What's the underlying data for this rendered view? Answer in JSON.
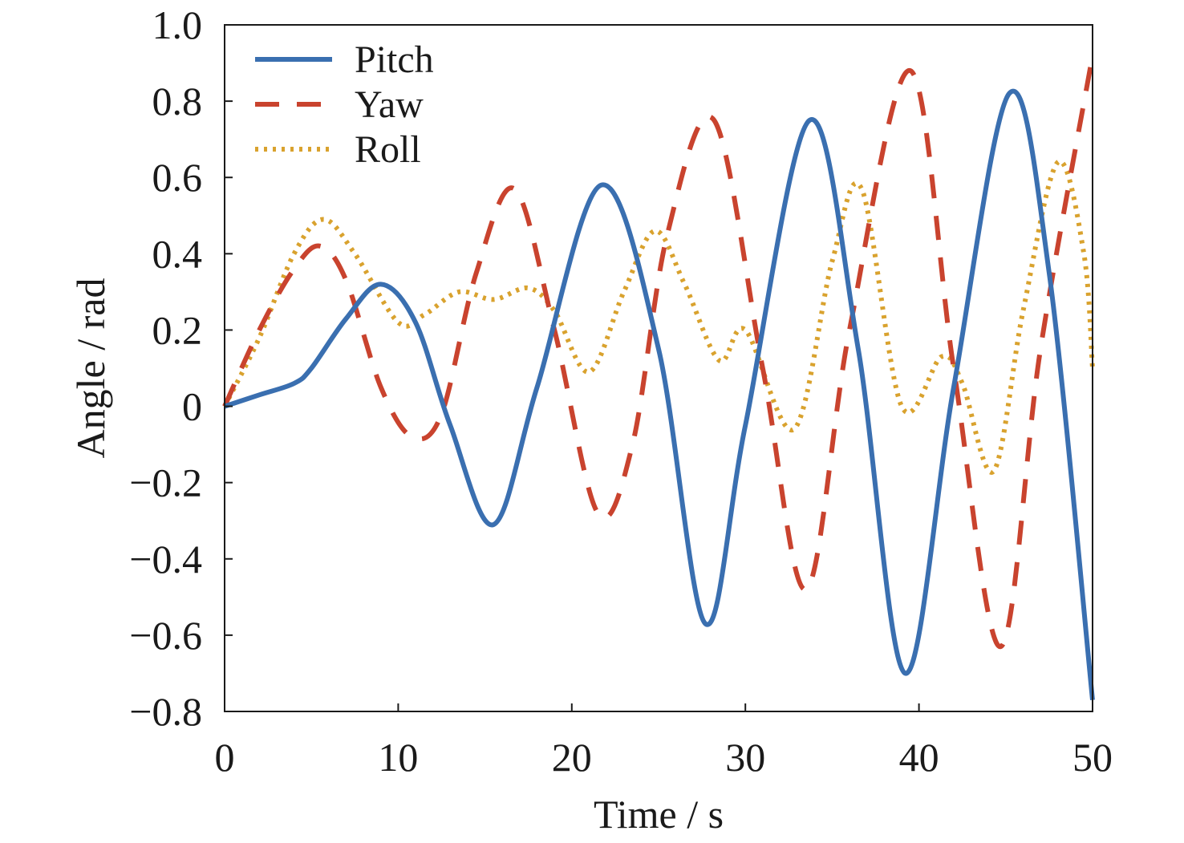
{
  "chart_data": {
    "type": "line",
    "title": "",
    "xlabel": "Time / s",
    "ylabel": "Angle / rad",
    "xlim": [
      0,
      50
    ],
    "ylim": [
      -0.8,
      1.0
    ],
    "xticks": [
      0,
      10,
      20,
      30,
      40,
      50
    ],
    "yticks": [
      -0.8,
      -0.6,
      -0.4,
      -0.2,
      0,
      0.2,
      0.4,
      0.6,
      0.8,
      1.0
    ],
    "xtick_labels": [
      "0",
      "10",
      "20",
      "30",
      "40",
      "50"
    ],
    "ytick_labels": [
      "−0.8",
      "−0.6",
      "−0.4",
      "−0.2",
      "0",
      "0.2",
      "0.4",
      "0.6",
      "0.8",
      "1.0"
    ],
    "grid": false,
    "legend_position": "top-left",
    "series": [
      {
        "name": "Pitch",
        "color": "#3a6fb0",
        "style": "solid",
        "x": [
          0,
          2,
          4,
          5,
          7,
          9,
          11,
          13,
          15.5,
          18,
          21.7,
          25,
          27.7,
          30,
          33.7,
          36.5,
          39.2,
          42,
          45.2,
          47.5,
          50
        ],
        "y": [
          0,
          0.03,
          0.06,
          0.1,
          0.23,
          0.32,
          0.22,
          -0.05,
          -0.31,
          0.05,
          0.58,
          0.15,
          -0.57,
          -0.05,
          0.75,
          0.15,
          -0.7,
          0.05,
          0.82,
          0.35,
          -0.77
        ]
      },
      {
        "name": "Yaw",
        "color": "#c9432e",
        "style": "dashed",
        "x": [
          0,
          2,
          4,
          5.5,
          7,
          9,
          10.8,
          12.5,
          14.5,
          16.7,
          19,
          21.5,
          23.5,
          25.5,
          28.2,
          31,
          33.5,
          36,
          39.5,
          42,
          44.7,
          47,
          50
        ],
        "y": [
          0,
          0.2,
          0.36,
          0.42,
          0.33,
          0.05,
          -0.08,
          -0.02,
          0.35,
          0.57,
          0.2,
          -0.28,
          -0.1,
          0.45,
          0.75,
          0.1,
          -0.48,
          0.2,
          0.88,
          0.1,
          -0.63,
          0.15,
          0.92
        ]
      },
      {
        "name": "Roll",
        "color": "#d9a22e",
        "style": "dotted",
        "x": [
          0,
          2,
          4,
          5.7,
          7.5,
          10,
          11.5,
          13.5,
          15.5,
          17.5,
          19,
          21,
          23,
          24.8,
          26.5,
          28.5,
          30,
          32.8,
          35,
          36.7,
          39,
          41.3,
          42.5,
          44.3,
          46,
          48,
          49.5,
          50
        ],
        "y": [
          0,
          0.18,
          0.4,
          0.49,
          0.4,
          0.22,
          0.24,
          0.3,
          0.28,
          0.31,
          0.25,
          0.09,
          0.3,
          0.46,
          0.32,
          0.12,
          0.2,
          -0.06,
          0.38,
          0.57,
          0.0,
          0.13,
          0.06,
          -0.17,
          0.25,
          0.64,
          0.4,
          0.1
        ]
      }
    ]
  }
}
